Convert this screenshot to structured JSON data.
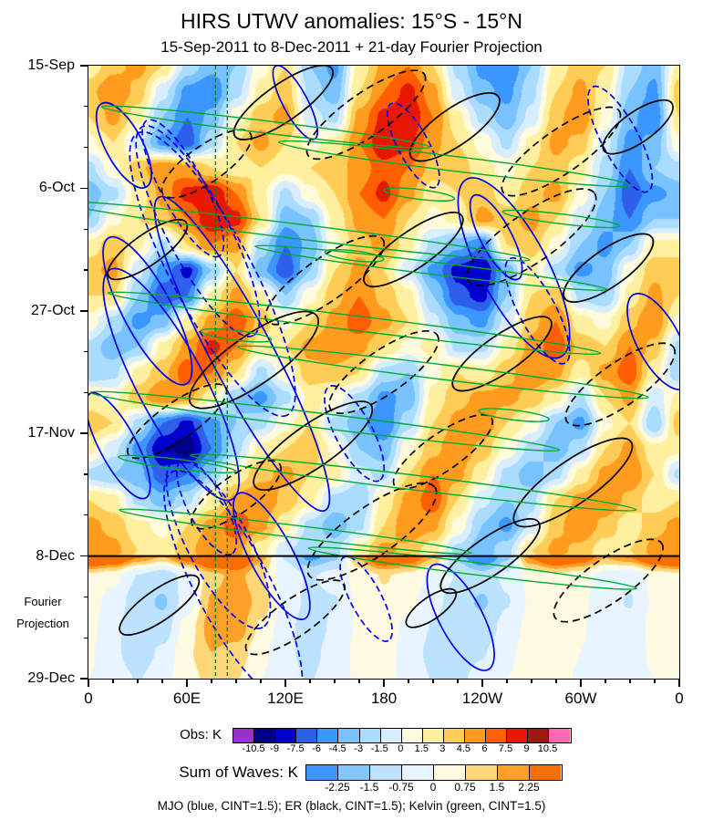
{
  "title": "HIRS UTWV anomalies: 15°S - 15°N",
  "subtitle": "15-Sep-2011 to 8-Dec-2011 + 21-day Fourier Projection",
  "chart_data": {
    "type": "heatmap",
    "title": "HIRS UTWV anomalies: 15°S - 15°N",
    "subtitle": "15-Sep-2011 to 8-Dec-2011 + 21-day Fourier Projection",
    "x_axis": {
      "ticks": [
        "0",
        "60E",
        "120E",
        "180",
        "120W",
        "60W",
        "0"
      ],
      "range_deg": [
        0,
        360
      ],
      "minor_tick_deg": 15
    },
    "y_axis": {
      "ticks": [
        "15-Sep",
        "6-Oct",
        "27-Oct",
        "17-Nov",
        "8-Dec",
        "29-Dec"
      ],
      "direction": "time-downward",
      "projection_start": "8-Dec",
      "projection_fraction": 0.8
    },
    "annotations": {
      "fourier_line1": "Fourier",
      "fourier_line2": "Projection"
    },
    "obs_colorbar": {
      "label": "Obs: K",
      "levels": [
        -10.5,
        -9,
        -7.5,
        -6,
        -4.5,
        -3,
        -1.5,
        0,
        1.5,
        3,
        4.5,
        6,
        7.5,
        9,
        10.5
      ],
      "colors": [
        "#9932CC",
        "#00008B",
        "#0000CD",
        "#2E5FEA",
        "#3C96FF",
        "#78C3FF",
        "#AADCFF",
        "#D8EEFF",
        "#FFFBDC",
        "#FFF0A0",
        "#FFCD55",
        "#FF9C1E",
        "#FF5F00",
        "#E81800",
        "#9E1A10",
        "#FF69B4"
      ]
    },
    "waves_colorbar": {
      "label": "Sum of Waves: K",
      "levels": [
        -2.25,
        -1.5,
        -0.75,
        0,
        0.75,
        1.5,
        2.25
      ],
      "colors": [
        "#3C96FF",
        "#82C8FF",
        "#BCE2FF",
        "#E8F5FF",
        "#FFFAE0",
        "#FFD778",
        "#FFA028",
        "#F57000"
      ]
    },
    "legend": {
      "text": "MJO (blue, CINT=1.5); ER (black, CINT=1.5); Kelvin (green, CINT=1.5)",
      "entries": [
        {
          "name": "MJO",
          "color": "#0000E6",
          "cint": 1.5,
          "style": "solid/dashed"
        },
        {
          "name": "ER",
          "color": "#000000",
          "cint": 1.5,
          "style": "solid/dashed"
        },
        {
          "name": "Kelvin",
          "color": "#00AA33",
          "cint": 1.5,
          "style": "solid"
        }
      ]
    },
    "field": {
      "units": "K",
      "rows": 25,
      "cols": 25,
      "values": [
        [
          2,
          4,
          5,
          3,
          -2,
          -4,
          -3,
          1,
          3,
          -3,
          -5,
          2,
          5,
          6,
          3,
          -2,
          -5,
          -6,
          -3,
          2,
          4,
          3,
          -2,
          -4,
          2
        ],
        [
          4,
          6,
          4,
          -1,
          -5,
          -6,
          -2,
          2,
          4,
          -2,
          -4,
          3,
          6,
          8,
          5,
          -1,
          -4,
          -5,
          -2,
          3,
          5,
          2,
          -3,
          -5,
          4
        ],
        [
          3,
          5,
          2,
          -3,
          -6,
          -4,
          1,
          4,
          5,
          -1,
          -2,
          5,
          8,
          9,
          6,
          2,
          -2,
          -4,
          -1,
          4,
          6,
          1,
          -4,
          -6,
          3
        ],
        [
          1,
          3,
          -1,
          -5,
          -7,
          -2,
          3,
          5,
          3,
          1,
          2,
          6,
          9,
          8,
          5,
          3,
          1,
          -2,
          2,
          5,
          4,
          -1,
          -5,
          -4,
          1
        ],
        [
          -2,
          1,
          4,
          6,
          5,
          3,
          2,
          3,
          2,
          3,
          4,
          5,
          7,
          6,
          4,
          4,
          2,
          1,
          3,
          4,
          2,
          -2,
          -6,
          -3,
          -2
        ],
        [
          -4,
          -2,
          2,
          5,
          8,
          9,
          6,
          2,
          -2,
          1,
          3,
          6,
          8,
          5,
          2,
          3,
          4,
          2,
          4,
          5,
          1,
          -3,
          -7,
          -5,
          -4
        ],
        [
          -3,
          1,
          3,
          4,
          6,
          9,
          8,
          3,
          -4,
          -3,
          2,
          5,
          6,
          3,
          1,
          2,
          5,
          4,
          5,
          3,
          -1,
          -4,
          -6,
          -3,
          -3
        ],
        [
          2,
          4,
          2,
          -2,
          3,
          6,
          5,
          -2,
          -6,
          -4,
          1,
          4,
          5,
          2,
          -2,
          -4,
          -6,
          3,
          4,
          1,
          -3,
          -5,
          -3,
          2,
          2
        ],
        [
          4,
          5,
          -1,
          -5,
          -8,
          -3,
          3,
          -4,
          -7,
          -3,
          3,
          5,
          3,
          -1,
          -5,
          -8,
          -9,
          -4,
          2,
          -2,
          -5,
          -4,
          1,
          4,
          4
        ],
        [
          3,
          3,
          -3,
          -7,
          -6,
          2,
          5,
          2,
          -3,
          1,
          4,
          6,
          4,
          2,
          -3,
          -7,
          -8,
          -3,
          3,
          4,
          -2,
          -3,
          2,
          5,
          3
        ],
        [
          1,
          -2,
          -5,
          -4,
          2,
          5,
          7,
          4,
          1,
          3,
          5,
          7,
          5,
          3,
          -1,
          -4,
          -5,
          -1,
          4,
          6,
          2,
          1,
          4,
          6,
          1
        ],
        [
          -2,
          -4,
          -3,
          2,
          5,
          8,
          6,
          2,
          3,
          5,
          6,
          5,
          3,
          1,
          2,
          -2,
          -2,
          2,
          5,
          7,
          4,
          3,
          6,
          4,
          -2
        ],
        [
          -3,
          -2,
          2,
          4,
          7,
          6,
          3,
          -2,
          1,
          4,
          4,
          3,
          -2,
          -3,
          1,
          3,
          2,
          4,
          6,
          5,
          2,
          5,
          7,
          2,
          -3
        ],
        [
          2,
          1,
          4,
          6,
          5,
          2,
          -3,
          -5,
          -2,
          2,
          1,
          -2,
          -5,
          -4,
          2,
          4,
          5,
          5,
          4,
          2,
          -2,
          3,
          5,
          -1,
          2
        ],
        [
          4,
          3,
          -2,
          -6,
          -8,
          -5,
          -3,
          -2,
          1,
          3,
          -2,
          -4,
          -6,
          -2,
          3,
          5,
          6,
          3,
          1,
          -3,
          -5,
          1,
          3,
          -3,
          4
        ],
        [
          2,
          -1,
          -5,
          -9,
          -10,
          -6,
          -2,
          2,
          3,
          4,
          1,
          -3,
          -4,
          1,
          4,
          6,
          4,
          1,
          -2,
          -4,
          -2,
          3,
          5,
          2,
          2
        ],
        [
          -2,
          -3,
          -4,
          -7,
          -6,
          -3,
          2,
          4,
          5,
          3,
          2,
          -1,
          -2,
          3,
          6,
          5,
          2,
          -2,
          -4,
          -2,
          2,
          5,
          6,
          3,
          -2
        ],
        [
          3,
          2,
          -2,
          -4,
          -2,
          2,
          5,
          6,
          4,
          2,
          -2,
          -3,
          2,
          5,
          7,
          3,
          -1,
          -3,
          -2,
          3,
          5,
          6,
          4,
          2,
          3
        ],
        [
          5,
          4,
          2,
          1,
          3,
          5,
          7,
          5,
          2,
          -2,
          -4,
          -2,
          3,
          6,
          5,
          1,
          -3,
          -5,
          -1,
          4,
          6,
          4,
          2,
          4,
          5
        ],
        [
          6,
          5,
          3,
          2,
          4,
          6,
          5,
          2,
          -1,
          -3,
          -2,
          2,
          5,
          4,
          2,
          -2,
          -4,
          -2,
          3,
          5,
          4,
          2,
          3,
          5,
          6
        ],
        [
          0.5,
          0.2,
          -0.8,
          -1.2,
          -0.5,
          1.2,
          1.8,
          0.8,
          -0.3,
          -0.8,
          -0.5,
          0.3,
          0.8,
          0.5,
          -0.2,
          -0.8,
          -1.2,
          -0.6,
          0.2,
          0.6,
          0.3,
          -0.3,
          -0.6,
          0.2,
          0.5
        ],
        [
          0.3,
          -0.3,
          -1.2,
          -1.6,
          -0.4,
          1.6,
          2.2,
          1.2,
          -0.2,
          -1,
          -0.8,
          0.2,
          0.6,
          0.2,
          -0.5,
          -1.2,
          -1.6,
          -0.8,
          0.1,
          0.5,
          0.2,
          -0.5,
          -0.8,
          0.1,
          0.3
        ],
        [
          0.2,
          -0.5,
          -1.5,
          -1.2,
          0.3,
          1.9,
          2,
          0.6,
          -0.5,
          -1.2,
          -0.6,
          0.1,
          0.4,
          -0.2,
          -0.8,
          -1.5,
          -1.2,
          -0.5,
          0.3,
          0.6,
          0.1,
          -0.6,
          -0.5,
          0.2,
          0.2
        ],
        [
          0.1,
          -0.6,
          -1.2,
          -0.6,
          0.6,
          1.5,
          1.2,
          0.2,
          -0.6,
          -1,
          -0.4,
          0.2,
          0.3,
          -0.3,
          -1,
          -1.2,
          -0.8,
          -0.2,
          0.4,
          0.5,
          0,
          -0.5,
          -0.3,
          0.1,
          0.1
        ],
        [
          0,
          -0.4,
          -0.8,
          -0.3,
          0.5,
          1,
          0.8,
          0,
          -0.5,
          -0.8,
          -0.3,
          0.1,
          0.2,
          -0.2,
          -0.8,
          -0.9,
          -0.5,
          0,
          0.3,
          0.3,
          -0.1,
          -0.4,
          -0.2,
          0,
          0
        ]
      ]
    },
    "overlays": {
      "mjo": [
        [
          0.16,
          0.2,
          0.13,
          0.035,
          62,
          1
        ],
        [
          0.185,
          0.27,
          0.2,
          0.05,
          62,
          1
        ],
        [
          0.21,
          0.34,
          0.27,
          0.065,
          62,
          1
        ],
        [
          0.1,
          0.4,
          0.14,
          0.04,
          62,
          0
        ],
        [
          0.14,
          0.52,
          0.22,
          0.055,
          62,
          0
        ],
        [
          0.26,
          0.47,
          0.3,
          0.05,
          62,
          0
        ],
        [
          0.72,
          0.33,
          0.17,
          0.055,
          62,
          0
        ],
        [
          0.76,
          0.4,
          0.1,
          0.03,
          62,
          1
        ],
        [
          0.69,
          0.28,
          0.08,
          0.025,
          62,
          0
        ],
        [
          0.9,
          0.12,
          0.1,
          0.03,
          62,
          1
        ],
        [
          0.965,
          0.45,
          0.09,
          0.035,
          62,
          0
        ],
        [
          0.2,
          0.72,
          0.09,
          0.03,
          62,
          1
        ],
        [
          0.22,
          0.78,
          0.16,
          0.05,
          62,
          1
        ],
        [
          0.245,
          0.85,
          0.22,
          0.06,
          62,
          1
        ],
        [
          0.31,
          0.8,
          0.12,
          0.035,
          62,
          0
        ],
        [
          0.63,
          0.9,
          0.1,
          0.035,
          62,
          0
        ],
        [
          0.05,
          0.62,
          0.1,
          0.03,
          62,
          0
        ],
        [
          0.45,
          0.6,
          0.09,
          0.03,
          62,
          1
        ],
        [
          0.55,
          0.13,
          0.08,
          0.025,
          62,
          1
        ],
        [
          0.35,
          0.06,
          0.07,
          0.02,
          62,
          0
        ],
        [
          0.47,
          0.87,
          0.08,
          0.025,
          62,
          1
        ],
        [
          0.06,
          0.13,
          0.08,
          0.03,
          62,
          0
        ]
      ],
      "er": [
        [
          0.33,
          0.06,
          0.1,
          0.03,
          -35,
          0
        ],
        [
          0.47,
          0.08,
          0.12,
          0.035,
          -35,
          1
        ],
        [
          0.62,
          0.1,
          0.09,
          0.03,
          -35,
          0
        ],
        [
          0.8,
          0.14,
          0.12,
          0.035,
          -35,
          1
        ],
        [
          0.93,
          0.1,
          0.07,
          0.025,
          -35,
          0
        ],
        [
          0.2,
          0.16,
          0.09,
          0.03,
          -35,
          1
        ],
        [
          0.75,
          0.28,
          0.13,
          0.04,
          -35,
          1
        ],
        [
          0.88,
          0.33,
          0.09,
          0.03,
          -35,
          0
        ],
        [
          0.55,
          0.3,
          0.1,
          0.03,
          -35,
          0
        ],
        [
          0.4,
          0.35,
          0.12,
          0.035,
          -35,
          1
        ],
        [
          0.1,
          0.3,
          0.08,
          0.025,
          -35,
          0
        ],
        [
          0.28,
          0.48,
          0.13,
          0.04,
          -35,
          0
        ],
        [
          0.5,
          0.5,
          0.11,
          0.035,
          -35,
          1
        ],
        [
          0.7,
          0.47,
          0.1,
          0.03,
          -35,
          0
        ],
        [
          0.9,
          0.52,
          0.11,
          0.035,
          -35,
          1
        ],
        [
          0.15,
          0.58,
          0.1,
          0.03,
          -35,
          1
        ],
        [
          0.38,
          0.62,
          0.12,
          0.035,
          -35,
          0
        ],
        [
          0.6,
          0.63,
          0.1,
          0.03,
          -35,
          1
        ],
        [
          0.82,
          0.68,
          0.12,
          0.035,
          -35,
          0
        ],
        [
          0.25,
          0.7,
          0.09,
          0.03,
          -35,
          1
        ],
        [
          0.48,
          0.76,
          0.13,
          0.04,
          -35,
          1
        ],
        [
          0.68,
          0.8,
          0.1,
          0.03,
          -35,
          0
        ],
        [
          0.88,
          0.84,
          0.11,
          0.035,
          -35,
          1
        ],
        [
          0.35,
          0.9,
          0.1,
          0.03,
          -35,
          1
        ],
        [
          0.58,
          0.885,
          0.05,
          0.018,
          -35,
          0
        ],
        [
          0.12,
          0.88,
          0.08,
          0.025,
          -35,
          0
        ]
      ],
      "kelvin": [
        [
          0.3,
          0.1,
          0.28,
          0.01,
          7
        ],
        [
          0.62,
          0.16,
          0.3,
          0.012,
          7
        ],
        [
          0.35,
          0.27,
          0.4,
          0.012,
          7
        ],
        [
          0.58,
          0.33,
          0.3,
          0.01,
          7
        ],
        [
          0.45,
          0.42,
          0.42,
          0.012,
          7
        ],
        [
          0.6,
          0.5,
          0.35,
          0.012,
          7
        ],
        [
          0.4,
          0.58,
          0.4,
          0.012,
          7
        ],
        [
          0.55,
          0.68,
          0.38,
          0.012,
          7
        ],
        [
          0.35,
          0.76,
          0.3,
          0.01,
          7
        ],
        [
          0.65,
          0.82,
          0.28,
          0.01,
          7
        ],
        [
          0.56,
          0.21,
          0.06,
          0.008,
          7
        ],
        [
          0.25,
          0.44,
          0.06,
          0.008,
          7
        ],
        [
          0.72,
          0.57,
          0.06,
          0.008,
          7
        ],
        [
          0.45,
          0.31,
          0.05,
          0.008,
          7
        ],
        [
          0.8,
          0.25,
          0.1,
          0.008,
          7
        ],
        [
          0.15,
          0.65,
          0.1,
          0.008,
          7
        ]
      ],
      "vertical_dashed_x": [
        0.215,
        0.235
      ]
    }
  }
}
